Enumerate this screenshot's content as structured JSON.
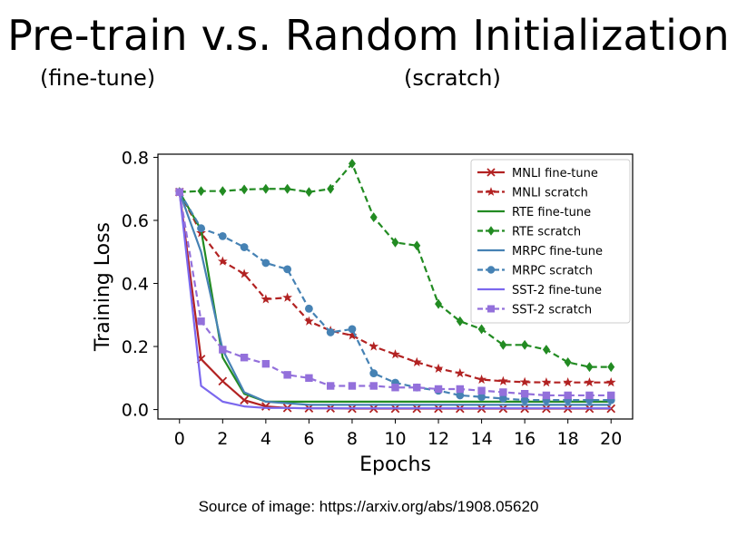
{
  "slide": {
    "title": "Pre-train v.s. Random Initialization",
    "subtitle_left": "(fine-tune)",
    "subtitle_right": "(scratch)",
    "caption": "Source of image: https://arxiv.org/abs/1908.05620"
  },
  "chart_data": {
    "type": "line",
    "title": "",
    "xlabel": "Epochs",
    "ylabel": "Training Loss",
    "xlim": [
      -1,
      21
    ],
    "ylim": [
      -0.03,
      0.81
    ],
    "xticks": [
      0,
      2,
      4,
      6,
      8,
      10,
      12,
      14,
      16,
      18,
      20
    ],
    "yticks": [
      0.0,
      0.2,
      0.4,
      0.6,
      0.8
    ],
    "ytick_labels": [
      "0.0",
      "0.2",
      "0.4",
      "0.6",
      "0.8"
    ],
    "grid": false,
    "legend_position": "upper-right",
    "x": [
      0,
      1,
      2,
      3,
      4,
      5,
      6,
      7,
      8,
      9,
      10,
      11,
      12,
      13,
      14,
      15,
      16,
      17,
      18,
      19,
      20
    ],
    "series": [
      {
        "name": "MNLI fine-tune",
        "color": "#b22222",
        "dash": "solid",
        "marker": "x",
        "values": [
          0.69,
          0.16,
          0.09,
          0.03,
          0.01,
          0.005,
          0.004,
          0.004,
          0.003,
          0.003,
          0.003,
          0.003,
          0.003,
          0.003,
          0.003,
          0.003,
          0.003,
          0.003,
          0.003,
          0.003,
          0.003
        ]
      },
      {
        "name": "MNLI scratch",
        "color": "#b22222",
        "dash": "dashed",
        "marker": "star",
        "values": [
          0.69,
          0.56,
          0.47,
          0.43,
          0.35,
          0.355,
          0.28,
          0.25,
          0.235,
          0.2,
          0.175,
          0.15,
          0.13,
          0.115,
          0.095,
          0.09,
          0.087,
          0.086,
          0.086,
          0.086,
          0.086
        ]
      },
      {
        "name": "RTE fine-tune",
        "color": "#228b22",
        "dash": "solid",
        "marker": "none",
        "values": [
          0.69,
          0.57,
          0.165,
          0.05,
          0.025,
          0.025,
          0.025,
          0.025,
          0.025,
          0.025,
          0.025,
          0.025,
          0.025,
          0.025,
          0.025,
          0.025,
          0.025,
          0.025,
          0.025,
          0.025,
          0.025
        ]
      },
      {
        "name": "RTE scratch",
        "color": "#228b22",
        "dash": "dashed",
        "marker": "diamond",
        "values": [
          0.69,
          0.693,
          0.693,
          0.698,
          0.7,
          0.7,
          0.69,
          0.7,
          0.78,
          0.61,
          0.53,
          0.52,
          0.335,
          0.28,
          0.255,
          0.205,
          0.205,
          0.19,
          0.15,
          0.135,
          0.135
        ]
      },
      {
        "name": "MRPC fine-tune",
        "color": "#4682b4",
        "dash": "solid",
        "marker": "none",
        "values": [
          0.69,
          0.5,
          0.19,
          0.055,
          0.025,
          0.02,
          0.015,
          0.015,
          0.015,
          0.015,
          0.015,
          0.015,
          0.015,
          0.015,
          0.015,
          0.015,
          0.015,
          0.015,
          0.015,
          0.015,
          0.015
        ]
      },
      {
        "name": "MRPC scratch",
        "color": "#4682b4",
        "dash": "dashed",
        "marker": "circle",
        "values": [
          0.69,
          0.575,
          0.55,
          0.515,
          0.465,
          0.445,
          0.32,
          0.245,
          0.255,
          0.115,
          0.085,
          0.07,
          0.06,
          0.045,
          0.04,
          0.035,
          0.03,
          0.03,
          0.03,
          0.03,
          0.03
        ]
      },
      {
        "name": "SST-2 fine-tune",
        "color": "#7b68ee",
        "dash": "solid",
        "marker": "none",
        "values": [
          0.69,
          0.075,
          0.025,
          0.01,
          0.005,
          0.005,
          0.004,
          0.004,
          0.004,
          0.004,
          0.004,
          0.004,
          0.004,
          0.004,
          0.004,
          0.004,
          0.004,
          0.004,
          0.004,
          0.004,
          0.004
        ]
      },
      {
        "name": "SST-2 scratch",
        "color": "#9370db",
        "dash": "dashed",
        "marker": "square",
        "values": [
          0.69,
          0.28,
          0.19,
          0.165,
          0.145,
          0.11,
          0.1,
          0.075,
          0.075,
          0.075,
          0.07,
          0.07,
          0.065,
          0.065,
          0.06,
          0.055,
          0.05,
          0.045,
          0.045,
          0.045,
          0.045
        ]
      }
    ]
  }
}
